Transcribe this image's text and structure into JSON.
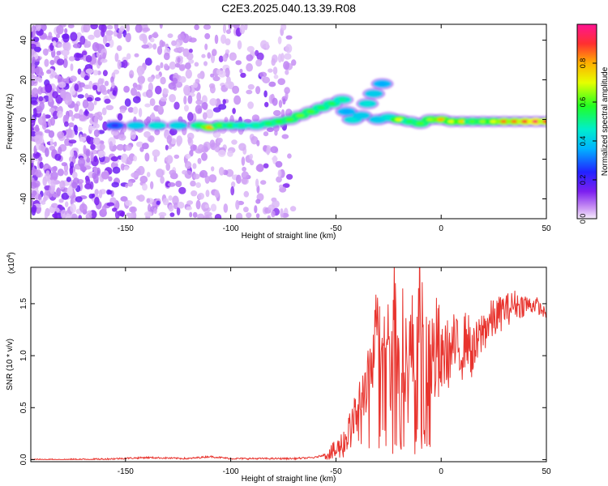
{
  "figure": {
    "title": "C2E3.2025.040.13.39.R08"
  },
  "chart_data": [
    {
      "type": "heatmap",
      "xlabel": "Height of straight line (km)",
      "ylabel": "Frequency (Hz)",
      "xlim": [
        -195,
        50
      ],
      "ylim": [
        -50,
        48
      ],
      "xticks": [
        -150,
        -100,
        -50,
        0,
        50
      ],
      "yticks": [
        -40,
        -20,
        0,
        20,
        40
      ],
      "colorbar": {
        "label": "Normalized spectral amplitude",
        "range": [
          0,
          1
        ],
        "ticks": [
          0.0,
          0.2,
          0.4,
          0.6,
          0.8
        ],
        "tick_labels": [
          "0.0",
          "0.2",
          "0.4",
          "0.6",
          "0.8"
        ]
      },
      "trace": [
        {
          "x": -155,
          "y": -3,
          "amp": 0.22
        },
        {
          "x": -145,
          "y": -3,
          "amp": 0.4
        },
        {
          "x": -135,
          "y": -3,
          "amp": 0.45
        },
        {
          "x": -125,
          "y": -3,
          "amp": 0.42
        },
        {
          "x": -115,
          "y": -3,
          "amp": 0.55
        },
        {
          "x": -110,
          "y": -4,
          "amp": 0.8
        },
        {
          "x": -105,
          "y": -3,
          "amp": 0.6
        },
        {
          "x": -100,
          "y": -3,
          "amp": 0.55
        },
        {
          "x": -95,
          "y": -3,
          "amp": 0.5
        },
        {
          "x": -88,
          "y": -3,
          "amp": 0.5
        },
        {
          "x": -82,
          "y": -2,
          "amp": 0.55
        },
        {
          "x": -77,
          "y": -1,
          "amp": 0.58
        },
        {
          "x": -72,
          "y": 0,
          "amp": 0.6
        },
        {
          "x": -67,
          "y": 2,
          "amp": 0.62
        },
        {
          "x": -62,
          "y": 4,
          "amp": 0.6
        },
        {
          "x": -57,
          "y": 6,
          "amp": 0.55
        },
        {
          "x": -52,
          "y": 8,
          "amp": 0.55
        },
        {
          "x": -47,
          "y": 10,
          "amp": 0.5
        },
        {
          "x": -45,
          "y": 4,
          "amp": 0.35
        },
        {
          "x": -42,
          "y": 0,
          "amp": 0.45
        },
        {
          "x": -38,
          "y": 2,
          "amp": 0.4
        },
        {
          "x": -35,
          "y": 8,
          "amp": 0.45
        },
        {
          "x": -32,
          "y": 13,
          "amp": 0.4
        },
        {
          "x": -28,
          "y": 18,
          "amp": 0.35
        },
        {
          "x": -30,
          "y": 0,
          "amp": 0.4
        },
        {
          "x": -25,
          "y": 1,
          "amp": 0.45
        },
        {
          "x": -20,
          "y": 0,
          "amp": 0.7
        },
        {
          "x": -15,
          "y": -1,
          "amp": 0.55
        },
        {
          "x": -10,
          "y": -2,
          "amp": 0.6
        },
        {
          "x": -5,
          "y": 0,
          "amp": 0.65
        },
        {
          "x": 0,
          "y": 0,
          "amp": 0.8
        },
        {
          "x": 5,
          "y": -1,
          "amp": 0.7
        },
        {
          "x": 10,
          "y": -1,
          "amp": 0.75
        },
        {
          "x": 15,
          "y": -1,
          "amp": 0.6
        },
        {
          "x": 20,
          "y": -1,
          "amp": 0.65
        },
        {
          "x": 25,
          "y": -1,
          "amp": 0.7
        },
        {
          "x": 30,
          "y": -1,
          "amp": 0.85
        },
        {
          "x": 35,
          "y": -1,
          "amp": 0.85
        },
        {
          "x": 40,
          "y": -1,
          "amp": 0.9
        },
        {
          "x": 45,
          "y": -1,
          "amp": 0.95
        },
        {
          "x": 50,
          "y": -1,
          "amp": 0.9
        }
      ],
      "colors": {
        "low": "#8a2be2",
        "mid": "#00ff7f",
        "high": "#ff2020"
      }
    },
    {
      "type": "line",
      "xlabel": "Height of straight line (km)",
      "ylabel": "SNR (10 * v/v)",
      "y_multiplier": "(x10",
      "y_multiplier_exp": "4",
      "y_multiplier_close": ")",
      "xlim": [
        -195,
        50
      ],
      "ylim": [
        -0.02,
        1.85
      ],
      "xticks": [
        -150,
        -100,
        -50,
        0,
        50
      ],
      "yticks": [
        0.0,
        0.5,
        1.0,
        1.5
      ],
      "ytick_labels": [
        "0.0",
        "0.5",
        "1.0",
        "1.5"
      ],
      "color": "#e8342e",
      "series": [
        {
          "x": [
            -195,
            -180,
            -160,
            -140,
            -120,
            -110,
            -100,
            -90,
            -80,
            -70,
            -60,
            -55,
            -50,
            -47,
            -45,
            -42,
            -40,
            -38,
            -35,
            -32,
            -30,
            -28,
            -26,
            -24,
            -22,
            -20,
            -18,
            -16,
            -14,
            -12,
            -10,
            -8,
            -6,
            -4,
            -2,
            0,
            2,
            4,
            6,
            8,
            10,
            12,
            15,
            18,
            20,
            22,
            25,
            28,
            30,
            32,
            35,
            38,
            40,
            42,
            45,
            47,
            50
          ],
          "y": [
            0.0,
            0.0,
            0.005,
            0.02,
            0.01,
            0.03,
            0.01,
            0.01,
            0.01,
            0.01,
            0.02,
            0.05,
            0.08,
            0.15,
            0.2,
            0.35,
            0.45,
            0.6,
            0.75,
            1.05,
            1.55,
            0.9,
            1.4,
            0.85,
            1.78,
            0.6,
            1.3,
            0.8,
            1.15,
            0.7,
            1.85,
            0.55,
            1.1,
            0.95,
            1.05,
            0.9,
            1.05,
            1.0,
            1.1,
            1.05,
            1.05,
            1.2,
            1.0,
            1.15,
            1.25,
            1.3,
            1.35,
            1.4,
            1.45,
            1.45,
            1.5,
            1.48,
            1.5,
            1.48,
            1.5,
            1.45,
            1.4
          ]
        }
      ]
    }
  ]
}
